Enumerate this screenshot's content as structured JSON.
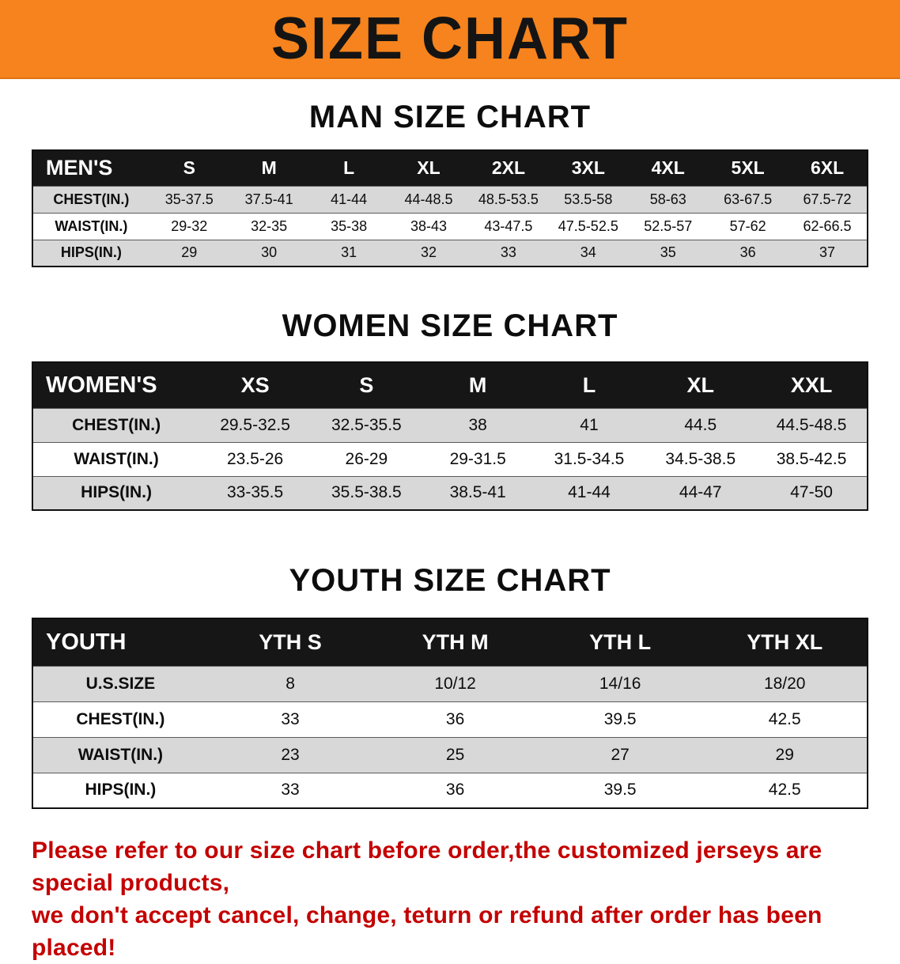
{
  "banner": {
    "title": "SIZE CHART"
  },
  "colors": {
    "banner_bg": "#F6831D",
    "table_header_bg": "#161616",
    "row_shade": "#D8D8D8",
    "note_red": "#C40000"
  },
  "sections": [
    {
      "id": "men",
      "heading": "MAN SIZE CHART",
      "table": {
        "header": [
          "MEN'S",
          "S",
          "M",
          "L",
          "XL",
          "2XL",
          "3XL",
          "4XL",
          "5XL",
          "6XL"
        ],
        "rows": [
          [
            "CHEST(IN.)",
            "35-37.5",
            "37.5-41",
            "41-44",
            "44-48.5",
            "48.5-53.5",
            "53.5-58",
            "58-63",
            "63-67.5",
            "67.5-72"
          ],
          [
            "WAIST(IN.)",
            "29-32",
            "32-35",
            "35-38",
            "38-43",
            "43-47.5",
            "47.5-52.5",
            "52.5-57",
            "57-62",
            "62-66.5"
          ],
          [
            "HIPS(IN.)",
            "29",
            "30",
            "31",
            "32",
            "33",
            "34",
            "35",
            "36",
            "37"
          ]
        ]
      }
    },
    {
      "id": "women",
      "heading": "WOMEN SIZE CHART",
      "table": {
        "header": [
          "WOMEN'S",
          "XS",
          "S",
          "M",
          "L",
          "XL",
          "XXL"
        ],
        "rows": [
          [
            "CHEST(IN.)",
            "29.5-32.5",
            "32.5-35.5",
            "38",
            "41",
            "44.5",
            "44.5-48.5"
          ],
          [
            "WAIST(IN.)",
            "23.5-26",
            "26-29",
            "29-31.5",
            "31.5-34.5",
            "34.5-38.5",
            "38.5-42.5"
          ],
          [
            "HIPS(IN.)",
            "33-35.5",
            "35.5-38.5",
            "38.5-41",
            "41-44",
            "44-47",
            "47-50"
          ]
        ]
      }
    },
    {
      "id": "youth",
      "heading": "YOUTH SIZE CHART",
      "table": {
        "header": [
          "YOUTH",
          "YTH S",
          "YTH M",
          "YTH L",
          "YTH XL"
        ],
        "rows": [
          [
            "U.S.SIZE",
            "8",
            "10/12",
            "14/16",
            "18/20"
          ],
          [
            "CHEST(IN.)",
            "33",
            "36",
            "39.5",
            "42.5"
          ],
          [
            "WAIST(IN.)",
            "23",
            "25",
            "27",
            "29"
          ],
          [
            "HIPS(IN.)",
            "33",
            "36",
            "39.5",
            "42.5"
          ]
        ]
      }
    }
  ],
  "note": {
    "line1": "Please refer to our size chart before order,the customized jerseys are special products,",
    "line2": "we don't accept cancel, change, teturn or refund after order has been placed!"
  }
}
